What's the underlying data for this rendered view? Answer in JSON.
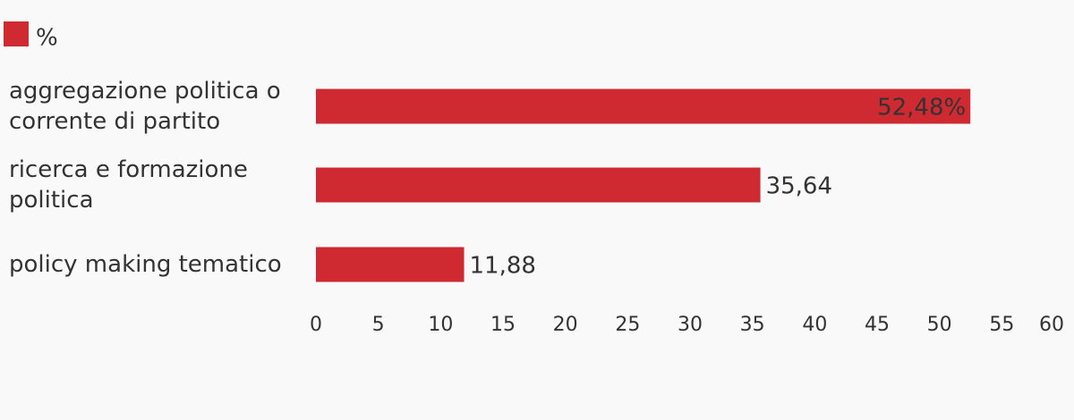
{
  "chart_data": {
    "type": "bar",
    "orientation": "horizontal",
    "categories": [
      "aggregazione politica o corrente di partito",
      "ricerca e formazione politica",
      "policy making tematico"
    ],
    "series": [
      {
        "name": "%",
        "color": "#cf2a32",
        "values": [
          52.48,
          35.64,
          11.88
        ],
        "value_labels": [
          "52,48%",
          "35,64",
          "11,88"
        ]
      }
    ],
    "xlim": [
      0,
      60
    ],
    "xticks": [
      0,
      5,
      10,
      15,
      20,
      25,
      30,
      35,
      40,
      45,
      50,
      55,
      60
    ],
    "legend": "top-left"
  }
}
